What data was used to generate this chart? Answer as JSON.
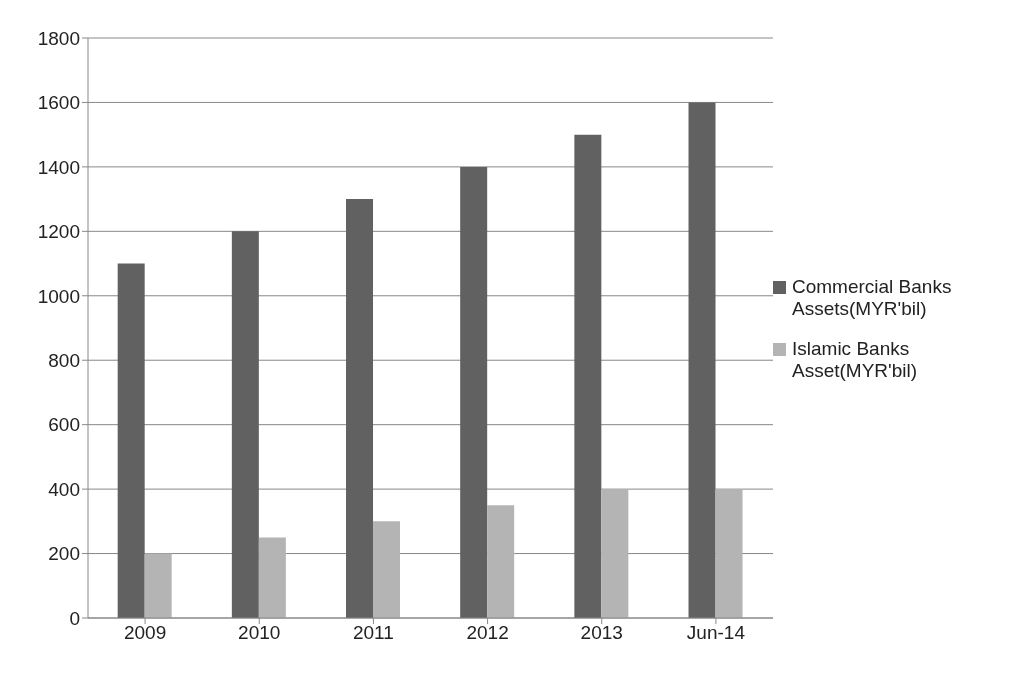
{
  "chart_data": {
    "type": "bar",
    "categories": [
      "2009",
      "2010",
      "2011",
      "2012",
      "2013",
      "Jun-14"
    ],
    "series": [
      {
        "name": "Commercial Banks Assets(MYR'bil)",
        "color": "#616161",
        "values": [
          1100,
          1200,
          1300,
          1400,
          1500,
          1600
        ]
      },
      {
        "name": "Islamic Banks Asset(MYR'bil)",
        "color": "#b4b4b4",
        "values": [
          200,
          250,
          300,
          350,
          400,
          400
        ]
      }
    ],
    "ylim": [
      0,
      1800
    ],
    "yticks": [
      0,
      200,
      400,
      600,
      800,
      1000,
      1200,
      1400,
      1600,
      1800
    ],
    "grid": "y",
    "legend": "right"
  }
}
